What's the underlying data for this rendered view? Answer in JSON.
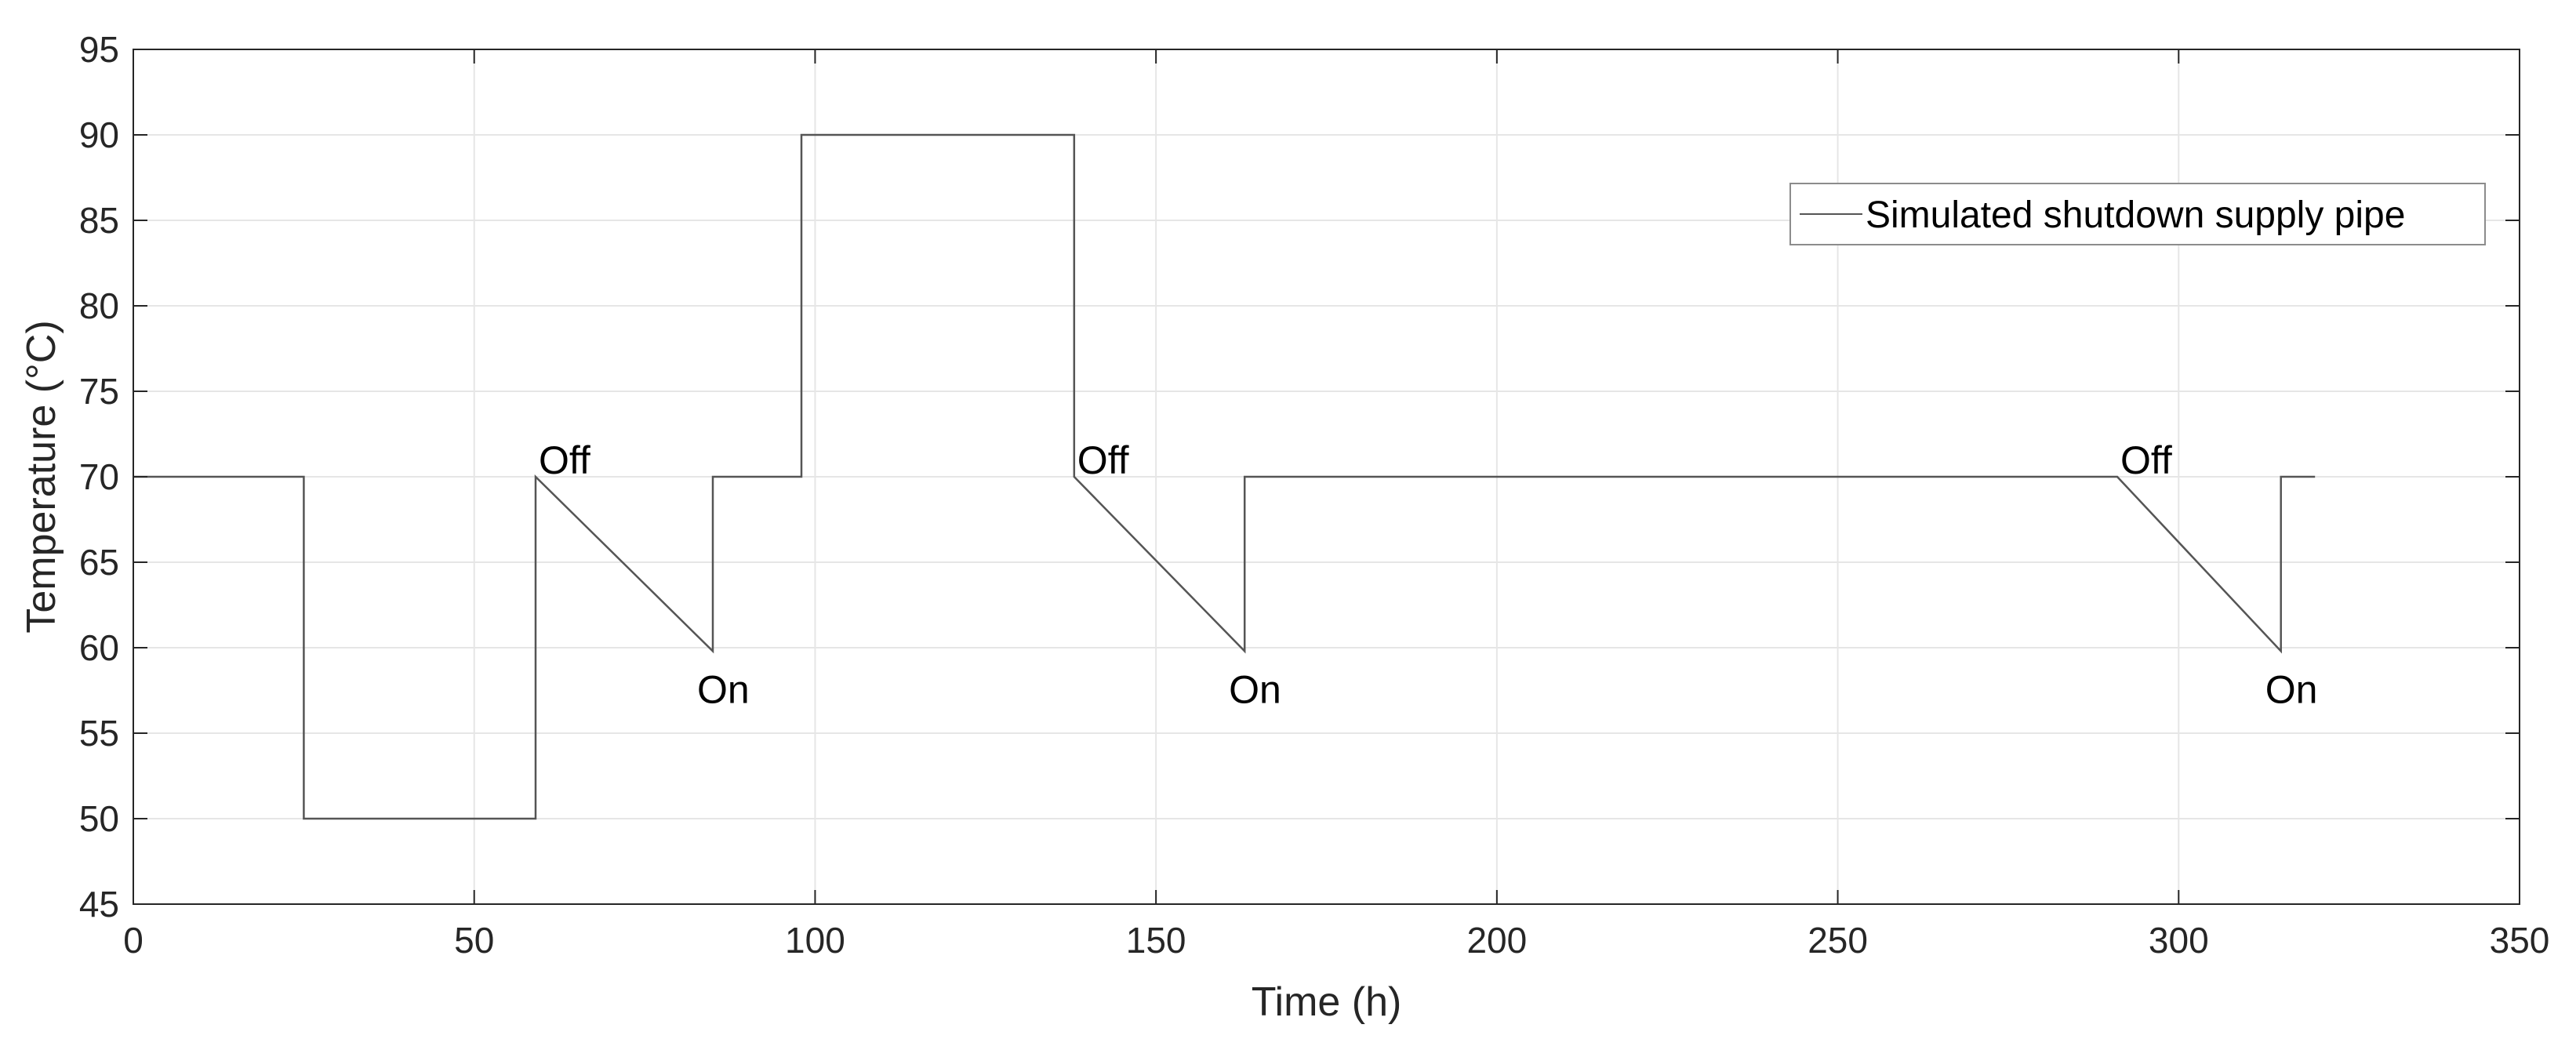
{
  "chart_data": {
    "type": "line",
    "xlabel": "Time (h)",
    "ylabel": "Temperature (°C)",
    "xlim": [
      0,
      350
    ],
    "ylim": [
      45,
      95
    ],
    "xticks": [
      0,
      50,
      100,
      150,
      200,
      250,
      300,
      350
    ],
    "yticks": [
      45,
      50,
      55,
      60,
      65,
      70,
      75,
      80,
      85,
      90,
      95
    ],
    "grid": true,
    "legend_position": "top-right",
    "series": [
      {
        "name": "Simulated shutdown supply pipe",
        "color": "#555555",
        "x": [
          0,
          25,
          25,
          59,
          59,
          85,
          85,
          98,
          98,
          138,
          138,
          163,
          163,
          291,
          315,
          315,
          320
        ],
        "y": [
          70,
          70,
          50,
          50,
          70,
          59.8,
          70,
          70,
          90,
          90,
          70,
          59.8,
          70,
          70,
          59.8,
          70,
          70
        ]
      }
    ],
    "annotations": [
      {
        "text": "Off",
        "x": 59,
        "y": 70
      },
      {
        "text": "On",
        "x": 85,
        "y": 59.8
      },
      {
        "text": "Off",
        "x": 138,
        "y": 70
      },
      {
        "text": "On",
        "x": 163,
        "y": 59.8
      },
      {
        "text": "Off",
        "x": 291,
        "y": 70
      },
      {
        "text": "On",
        "x": 315,
        "y": 59.8
      }
    ]
  },
  "colors": {
    "axis": "#262626",
    "grid": "#e6e6e6",
    "line": "#555555"
  }
}
